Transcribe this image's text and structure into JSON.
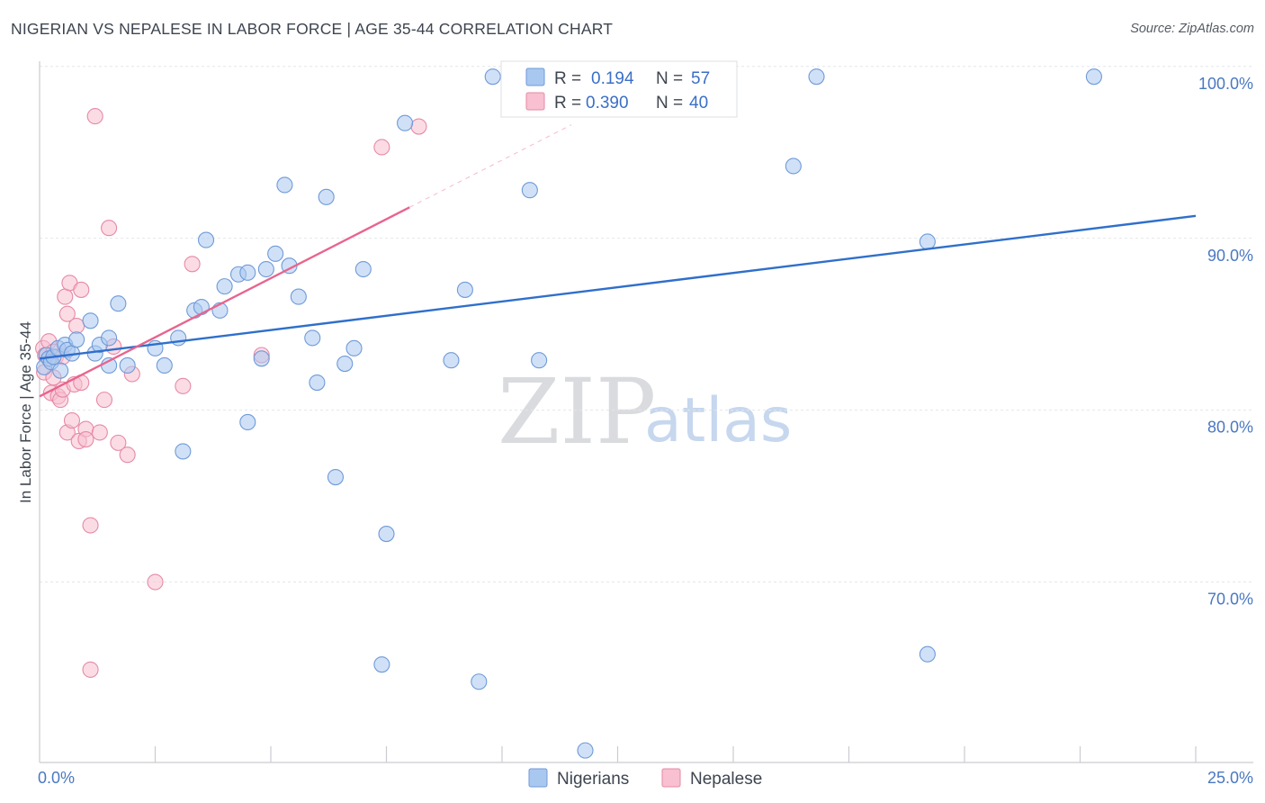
{
  "header": {
    "title": "NIGERIAN VS NEPALESE IN LABOR FORCE | AGE 35-44 CORRELATION CHART",
    "source": "Source: ZipAtlas.com"
  },
  "watermark": {
    "zip": "ZIP",
    "atlas": "atlas"
  },
  "stats_legend": {
    "rows": [
      {
        "r_label": "R =",
        "r_value": "0.194",
        "n_label": "N =",
        "n_value": "57",
        "color": "#a9c8f0",
        "stroke": "#6f9ad8"
      },
      {
        "r_label": "R =",
        "r_value": "0.390",
        "n_label": "N =",
        "n_value": "40",
        "color": "#f8c0d0",
        "stroke": "#e68aa6"
      }
    ]
  },
  "chart_data": {
    "type": "scatter",
    "title": "NIGERIAN VS NEPALESE IN LABOR FORCE | AGE 35-44 CORRELATION CHART",
    "xlabel": "",
    "ylabel": "In Labor Force | Age 35-44",
    "xlim": [
      0,
      25
    ],
    "ylim": [
      60.5,
      101.3
    ],
    "x_tick_labels": [
      {
        "value": 0,
        "label": "0.0%"
      },
      {
        "value": 25,
        "label": "25.0%"
      }
    ],
    "y_tick_labels": [
      {
        "value": 100,
        "label": "100.0%"
      },
      {
        "value": 90,
        "label": "90.0%"
      },
      {
        "value": 80,
        "label": "80.0%"
      },
      {
        "value": 70,
        "label": "70.0%"
      }
    ],
    "y_gridlines": [
      101,
      91,
      81,
      71
    ],
    "x_minor_ticks": [
      2.5,
      5,
      7.5,
      10,
      12.5,
      15,
      17.5,
      20,
      22.5,
      25
    ],
    "grid": true,
    "legend_position": "bottom-center",
    "series": [
      {
        "name": "Nigerians",
        "color": "#a9c8f0",
        "stroke": "#6f9ad8",
        "trend_color": "#2f6fcb",
        "trend": {
          "x0": 0.0,
          "y0": 84.0,
          "x1": 25.0,
          "y1": 92.3
        },
        "points": [
          [
            0.1,
            83.5
          ],
          [
            0.15,
            84.2
          ],
          [
            0.2,
            84.0
          ],
          [
            0.25,
            83.8
          ],
          [
            0.3,
            84.1
          ],
          [
            0.4,
            84.6
          ],
          [
            0.45,
            83.3
          ],
          [
            0.55,
            84.8
          ],
          [
            0.6,
            84.5
          ],
          [
            0.7,
            84.3
          ],
          [
            0.8,
            85.1
          ],
          [
            1.1,
            86.2
          ],
          [
            1.2,
            84.3
          ],
          [
            1.3,
            84.8
          ],
          [
            1.5,
            85.2
          ],
          [
            1.5,
            83.6
          ],
          [
            1.7,
            87.2
          ],
          [
            1.9,
            83.6
          ],
          [
            2.5,
            84.6
          ],
          [
            2.7,
            83.6
          ],
          [
            3.0,
            85.2
          ],
          [
            3.1,
            78.6
          ],
          [
            3.35,
            86.8
          ],
          [
            3.5,
            87.0
          ],
          [
            3.6,
            90.9
          ],
          [
            3.9,
            86.8
          ],
          [
            4.0,
            88.2
          ],
          [
            4.3,
            88.9
          ],
          [
            4.5,
            89.0
          ],
          [
            4.5,
            80.3
          ],
          [
            4.8,
            84.0
          ],
          [
            4.9,
            89.2
          ],
          [
            5.1,
            90.1
          ],
          [
            5.3,
            94.1
          ],
          [
            5.4,
            89.4
          ],
          [
            5.6,
            87.6
          ],
          [
            5.9,
            85.2
          ],
          [
            6.0,
            82.6
          ],
          [
            6.2,
            93.4
          ],
          [
            6.4,
            77.1
          ],
          [
            6.6,
            83.7
          ],
          [
            6.8,
            84.6
          ],
          [
            7.0,
            89.2
          ],
          [
            7.4,
            66.2
          ],
          [
            7.5,
            73.8
          ],
          [
            7.9,
            97.7
          ],
          [
            8.9,
            83.9
          ],
          [
            9.2,
            88.0
          ],
          [
            9.5,
            65.2
          ],
          [
            9.8,
            100.4
          ],
          [
            10.6,
            93.8
          ],
          [
            10.8,
            83.9
          ],
          [
            11.8,
            61.2
          ],
          [
            16.3,
            95.2
          ],
          [
            16.8,
            100.4
          ],
          [
            19.2,
            66.8
          ],
          [
            19.2,
            90.8
          ],
          [
            22.8,
            100.4
          ]
        ]
      },
      {
        "name": "Nepalese",
        "color": "#f8c0d0",
        "stroke": "#e68aa6",
        "trend_color": "#e8648e",
        "trend": {
          "x0": 0.0,
          "y0": 81.8,
          "x1": 8.0,
          "y1": 92.8
        },
        "trend_extension": {
          "x0": 8.0,
          "y0": 92.8,
          "x1": 11.5,
          "y1": 97.6
        },
        "points": [
          [
            0.08,
            84.6
          ],
          [
            0.1,
            83.2
          ],
          [
            0.12,
            84.2
          ],
          [
            0.2,
            85.0
          ],
          [
            0.25,
            82.0
          ],
          [
            0.3,
            84.4
          ],
          [
            0.35,
            84.1
          ],
          [
            0.4,
            81.8
          ],
          [
            0.45,
            81.6
          ],
          [
            0.5,
            84.1
          ],
          [
            0.5,
            82.2
          ],
          [
            0.55,
            87.6
          ],
          [
            0.6,
            86.6
          ],
          [
            0.6,
            79.7
          ],
          [
            0.65,
            88.4
          ],
          [
            0.7,
            80.4
          ],
          [
            0.75,
            82.5
          ],
          [
            0.8,
            85.9
          ],
          [
            0.85,
            79.2
          ],
          [
            0.9,
            88.0
          ],
          [
            0.9,
            82.6
          ],
          [
            1.0,
            79.9
          ],
          [
            1.0,
            79.3
          ],
          [
            1.1,
            74.3
          ],
          [
            1.1,
            65.9
          ],
          [
            1.2,
            98.1
          ],
          [
            1.3,
            79.7
          ],
          [
            1.4,
            81.6
          ],
          [
            1.5,
            91.6
          ],
          [
            1.7,
            79.1
          ],
          [
            1.9,
            78.4
          ],
          [
            2.5,
            71.0
          ],
          [
            3.3,
            89.5
          ],
          [
            4.8,
            84.2
          ],
          [
            7.4,
            96.3
          ],
          [
            8.2,
            97.5
          ],
          [
            3.1,
            82.4
          ],
          [
            1.6,
            84.7
          ],
          [
            0.3,
            82.9
          ],
          [
            2.0,
            83.1
          ]
        ]
      }
    ]
  }
}
